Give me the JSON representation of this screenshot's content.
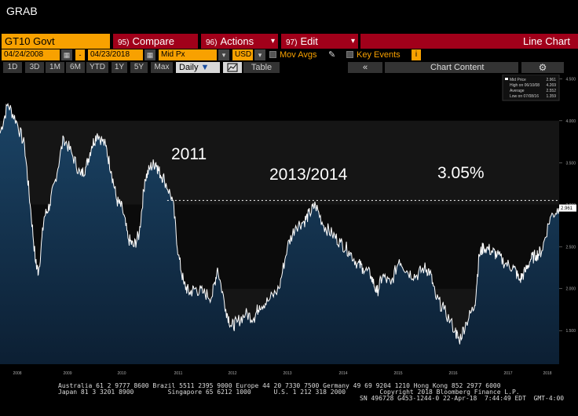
{
  "window": {
    "title": "GRAB"
  },
  "toolbar": {
    "ticker": "GT10 Govt",
    "compare": {
      "num": "95)",
      "label": "Compare"
    },
    "actions": {
      "num": "96)",
      "label": "Actions"
    },
    "edit": {
      "num": "97)",
      "label": "Edit"
    },
    "view_title": "Line Chart"
  },
  "params": {
    "start_date": "04/24/2008",
    "end_date": "04/23/2018",
    "field": "Mid Px",
    "currency": "USD",
    "mov_avgs": "Mov Avgs",
    "key_events": "Key Events"
  },
  "periods": [
    "1D",
    "3D",
    "1M",
    "6M",
    "YTD",
    "1Y",
    "5Y",
    "Max"
  ],
  "frequency": "Daily",
  "table_label": "Table",
  "chart_content_label": "Chart Content",
  "legend": {
    "mid_price_label": "Mid Price",
    "mid_price_value": "2.961",
    "high_label": "High on 06/10/08",
    "high_value": "4.269",
    "avg_label": "Average",
    "avg_value": "2.552",
    "low_label": "Low on 07/08/16",
    "low_value": "1.359"
  },
  "annotations": {
    "a2011": "2011",
    "a2013": "2013/2014",
    "a305": "3.05%"
  },
  "colors": {
    "accent": "#f8a100",
    "brand_red": "#a1001a",
    "area": "#123049",
    "line": "#ffffff"
  },
  "chart_data": {
    "type": "area",
    "title": "",
    "x_axis_years": [
      "2008",
      "2009",
      "2010",
      "2011",
      "2012",
      "2013",
      "2014",
      "2015",
      "2016",
      "2017",
      "2018"
    ],
    "y_ticks": [
      "4.500",
      "4.000",
      "3.500",
      "3.000",
      "2.500",
      "2.000",
      "1.500"
    ],
    "ylim": [
      1.1,
      4.55
    ],
    "reference_line": 3.05,
    "current_value_label": "2.961",
    "series": [
      {
        "x": [
          2008.31,
          2008.45,
          2008.6,
          2008.75,
          2008.85,
          2008.95,
          2009.0,
          2009.1,
          2009.2,
          2009.3,
          2009.45,
          2009.6,
          2009.75,
          2009.85,
          2009.95,
          2010.05,
          2010.2,
          2010.3,
          2010.4,
          2010.5,
          2010.6,
          2010.7,
          2010.8,
          2010.9,
          2011.0,
          2011.1,
          2011.15,
          2011.25,
          2011.4,
          2011.5,
          2011.6,
          2011.7,
          2011.8,
          2011.95,
          2012.1,
          2012.2,
          2012.35,
          2012.45,
          2012.55,
          2012.7,
          2012.85,
          2012.95,
          2013.1,
          2013.3,
          2013.45,
          2013.6,
          2013.75,
          2013.85,
          2013.95,
          2014.1,
          2014.25,
          2014.4,
          2014.55,
          2014.7,
          2014.8,
          2014.95,
          2015.05,
          2015.15,
          2015.3,
          2015.45,
          2015.6,
          2015.75,
          2015.9,
          2016.0,
          2016.1,
          2016.25,
          2016.45,
          2016.52,
          2016.65,
          2016.8,
          2016.88,
          2016.96,
          2017.1,
          2017.2,
          2017.35,
          2017.5,
          2017.6,
          2017.7,
          2017.8,
          2017.9,
          2018.0,
          2018.15,
          2018.31
        ],
        "values": [
          3.85,
          4.2,
          4.0,
          3.7,
          3.0,
          2.3,
          2.2,
          2.85,
          3.0,
          3.3,
          3.8,
          3.6,
          3.35,
          3.45,
          3.7,
          3.85,
          3.7,
          3.4,
          3.05,
          2.95,
          2.6,
          2.5,
          2.65,
          3.3,
          3.45,
          3.5,
          3.4,
          3.3,
          3.05,
          2.4,
          2.05,
          1.95,
          2.0,
          1.95,
          1.9,
          2.25,
          1.75,
          1.55,
          1.6,
          1.7,
          1.65,
          1.8,
          1.85,
          2.0,
          2.5,
          2.75,
          2.8,
          2.9,
          3.0,
          2.75,
          2.65,
          2.55,
          2.45,
          2.3,
          2.25,
          2.15,
          1.95,
          2.15,
          2.05,
          2.35,
          2.2,
          2.15,
          2.25,
          2.2,
          1.9,
          1.75,
          1.5,
          1.38,
          1.6,
          1.8,
          2.4,
          2.5,
          2.45,
          2.4,
          2.3,
          2.25,
          2.1,
          2.2,
          2.35,
          2.4,
          2.45,
          2.85,
          2.96
        ]
      }
    ]
  }
}
